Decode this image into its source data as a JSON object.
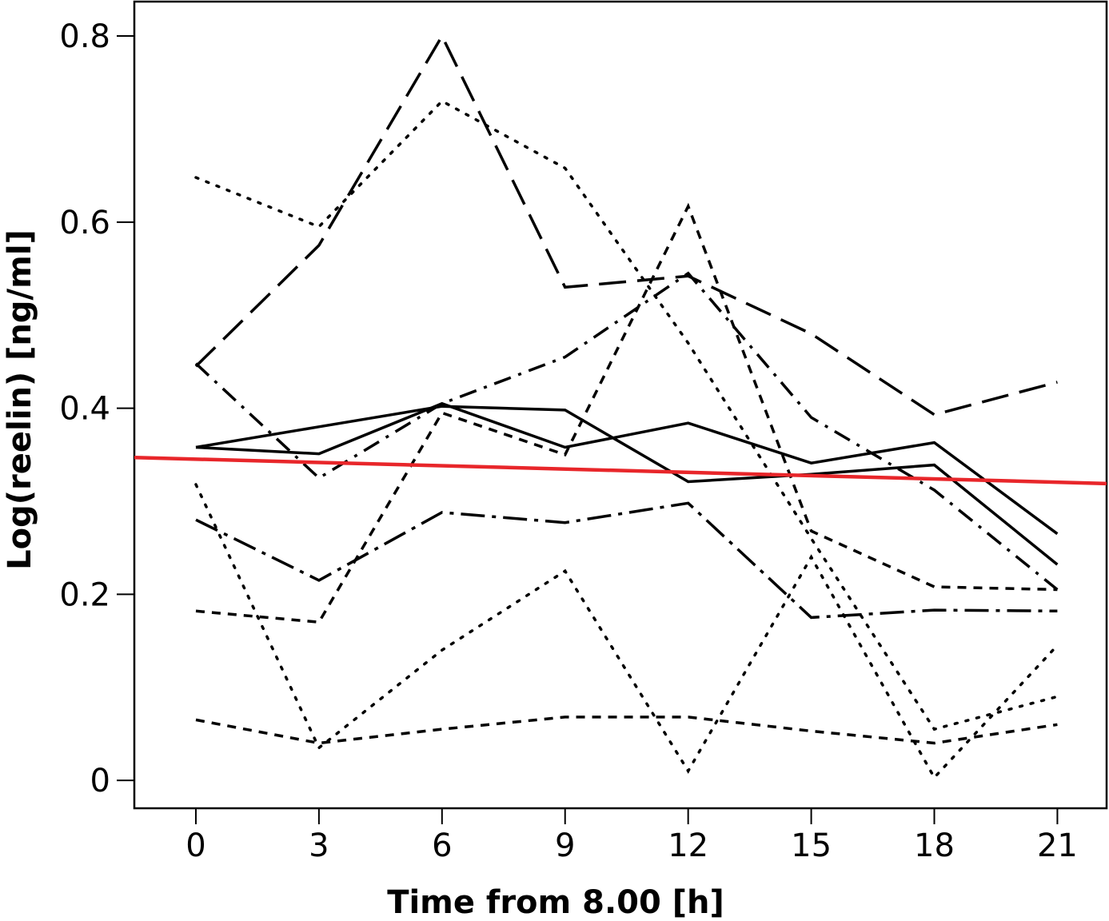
{
  "chart_data": {
    "type": "line",
    "xlabel": "Time from 8.00 [h]",
    "ylabel": "Log(reelin) [ng/ml]",
    "x": [
      0,
      3,
      6,
      9,
      12,
      15,
      18,
      21
    ],
    "x_ticks": [
      "0",
      "3",
      "6",
      "9",
      "12",
      "15",
      "18",
      "21"
    ],
    "y_ticks": [
      0,
      0.2,
      0.4,
      0.6,
      0.8
    ],
    "y_tick_labels": [
      "0",
      "0.2",
      "0.4",
      "0.6",
      "0.8"
    ],
    "xlim": [
      -1.5,
      22.2
    ],
    "ylim": [
      -0.03,
      0.837
    ],
    "grid": false,
    "legend": "none",
    "series": [
      {
        "style": "long-dash",
        "color": "#000000",
        "values": [
          0.445,
          0.575,
          0.8,
          0.53,
          0.542,
          0.48,
          0.393,
          0.428
        ]
      },
      {
        "style": "dotted",
        "color": "#000000",
        "values": [
          0.648,
          0.595,
          0.73,
          0.658,
          0.47,
          0.26,
          0.055,
          0.09
        ]
      },
      {
        "style": "dash-dot",
        "color": "#000000",
        "values": [
          0.448,
          0.325,
          0.405,
          0.455,
          0.545,
          0.39,
          0.312,
          0.205
        ]
      },
      {
        "style": "solid",
        "color": "#000000",
        "values": [
          0.358,
          0.38,
          0.402,
          0.398,
          0.321,
          0.329,
          0.339,
          0.232
        ]
      },
      {
        "style": "solid",
        "color": "#000000",
        "values": [
          0.358,
          0.351,
          0.405,
          0.358,
          0.384,
          0.341,
          0.363,
          0.265
        ]
      },
      {
        "style": "short-dash",
        "color": "#000000",
        "values": [
          0.182,
          0.17,
          0.395,
          0.35,
          0.617,
          0.268,
          0.208,
          0.205
        ]
      },
      {
        "style": "dash-dot-long",
        "color": "#000000",
        "values": [
          0.28,
          0.215,
          0.288,
          0.277,
          0.298,
          0.175,
          0.183,
          0.182
        ]
      },
      {
        "style": "dotted",
        "color": "#000000",
        "values": [
          0.318,
          0.035,
          0.14,
          0.225,
          0.01,
          0.24,
          0.003,
          0.145
        ]
      },
      {
        "style": "short-dash",
        "color": "#000000",
        "values": [
          0.065,
          0.04,
          0.055,
          0.068,
          0.068,
          0.053,
          0.04,
          0.06
        ]
      }
    ],
    "trend": {
      "color": "#e8262a",
      "x": [
        -1.5,
        22.2
      ],
      "values": [
        0.347,
        0.319
      ]
    }
  }
}
